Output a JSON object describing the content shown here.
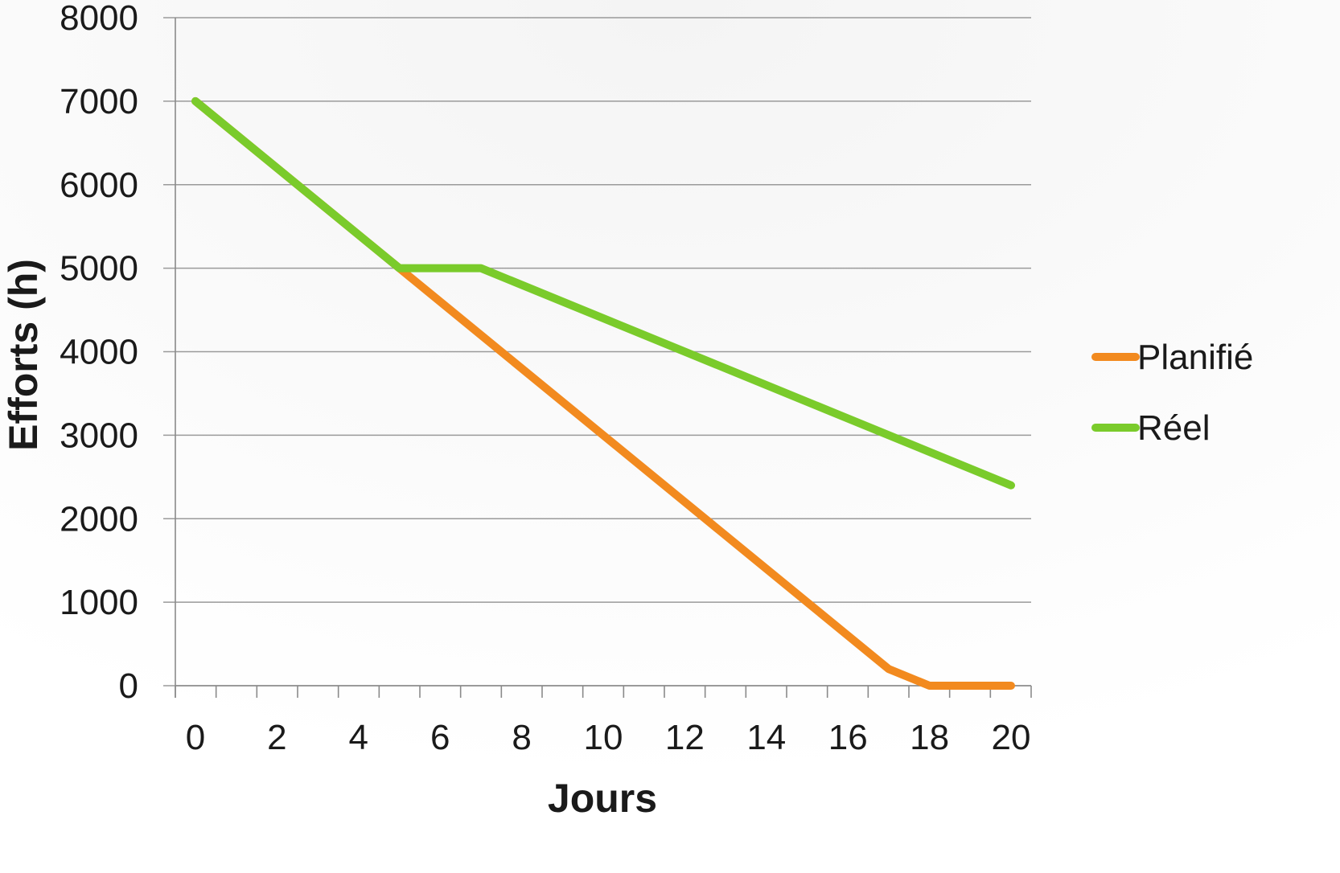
{
  "chart_data": {
    "type": "line",
    "title": "",
    "xlabel": "Jours",
    "ylabel": "Efforts (h)",
    "x_ticks": [
      "0",
      "2",
      "4",
      "6",
      "8",
      "10",
      "12",
      "14",
      "16",
      "18",
      "20"
    ],
    "y_ticks": [
      "0",
      "1000",
      "2000",
      "3000",
      "4000",
      "5000",
      "6000",
      "7000",
      "8000"
    ],
    "xlim": [
      0,
      20
    ],
    "ylim": [
      0,
      8000
    ],
    "grid": "horizontal",
    "legend_position": "right",
    "series": [
      {
        "name": "Planifié",
        "color": "#f28a1f",
        "points": [
          [
            0,
            7000
          ],
          [
            5,
            5000
          ],
          [
            17,
            200
          ],
          [
            18,
            0
          ],
          [
            20,
            0
          ]
        ]
      },
      {
        "name": "Réel",
        "color": "#7acb2b",
        "points": [
          [
            0,
            7000
          ],
          [
            5,
            5000
          ],
          [
            7,
            5000
          ],
          [
            12,
            4000
          ],
          [
            17,
            3000
          ],
          [
            20,
            2400
          ]
        ]
      }
    ]
  }
}
